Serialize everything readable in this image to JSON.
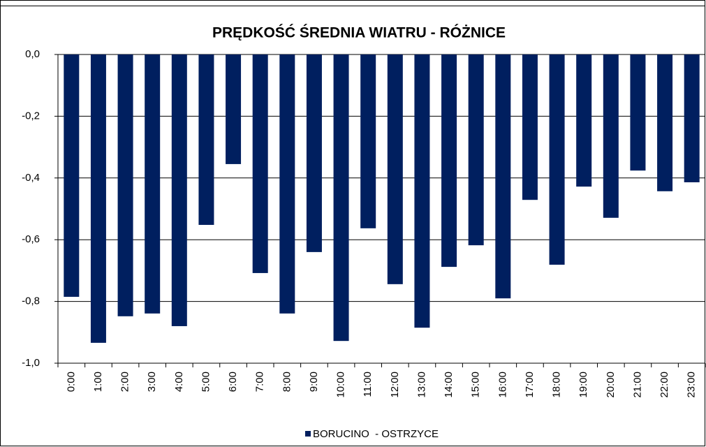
{
  "chart_data": {
    "type": "bar",
    "title": "PRĘDKOŚĆ ŚREDNIA WIATRU - RÓŻNICE",
    "categories": [
      "0:00",
      "1:00",
      "2:00",
      "3:00",
      "4:00",
      "5:00",
      "6:00",
      "7:00",
      "8:00",
      "9:00",
      "10:00",
      "11:00",
      "12:00",
      "13:00",
      "14:00",
      "15:00",
      "16:00",
      "17:00",
      "18:00",
      "19:00",
      "20:00",
      "21:00",
      "22:00",
      "23:00"
    ],
    "series": [
      {
        "name": "BORUCINO  - OSTRZYCE",
        "color": "#001f5f",
        "values": [
          -0.785,
          -0.934,
          -0.848,
          -0.839,
          -0.88,
          -0.552,
          -0.355,
          -0.708,
          -0.839,
          -0.64,
          -0.928,
          -0.563,
          -0.744,
          -0.885,
          -0.688,
          -0.618,
          -0.79,
          -0.471,
          -0.681,
          -0.428,
          -0.529,
          -0.376,
          -0.443,
          -0.414
        ]
      }
    ],
    "ylim": [
      -1,
      0
    ],
    "yticks": [
      {
        "value": 0,
        "label": "0,0"
      },
      {
        "value": -0.2,
        "label": "-0,2"
      },
      {
        "value": -0.4,
        "label": "-0,4"
      },
      {
        "value": -0.6,
        "label": "-0,6"
      },
      {
        "value": -0.8,
        "label": "-0,8"
      },
      {
        "value": -1,
        "label": "-1,0"
      }
    ],
    "grid": true,
    "legend": "bottom"
  }
}
